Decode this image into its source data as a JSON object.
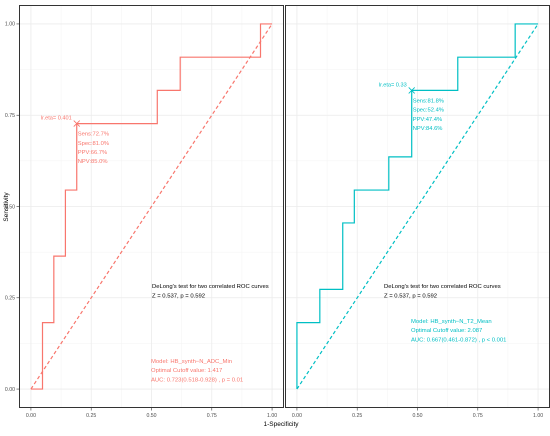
{
  "figure": {
    "xlabel": "1-Specificity",
    "ylabel": "Sensitivity"
  },
  "chart_data": [
    {
      "type": "line",
      "panel": "left",
      "color": "#f8766d",
      "xlim": [
        0,
        1
      ],
      "ylim": [
        0,
        1
      ],
      "x_ticks": [
        "0.00",
        "0.25",
        "0.50",
        "0.75",
        "1.00"
      ],
      "y_ticks": [
        "0.00",
        "0.25",
        "0.50",
        "0.75",
        "1.00"
      ],
      "grid": true,
      "roc": [
        [
          0,
          0
        ],
        [
          0.048,
          0
        ],
        [
          0.048,
          0.182
        ],
        [
          0.095,
          0.182
        ],
        [
          0.095,
          0.364
        ],
        [
          0.143,
          0.364
        ],
        [
          0.143,
          0.545
        ],
        [
          0.19,
          0.545
        ],
        [
          0.19,
          0.727
        ],
        [
          0.524,
          0.727
        ],
        [
          0.524,
          0.818
        ],
        [
          0.619,
          0.818
        ],
        [
          0.619,
          0.909
        ],
        [
          0.952,
          0.909
        ],
        [
          0.952,
          1
        ],
        [
          1,
          1
        ]
      ],
      "diagonal": [
        [
          0,
          0
        ],
        [
          1,
          1
        ]
      ],
      "cutoff_point": {
        "x": 0.19,
        "y": 0.727,
        "label": "lr.eta= 0.401"
      },
      "metrics": [
        "Sens:72.7%",
        "Spec:81.0%",
        "PPV:66.7%",
        "NPV:85.0%"
      ],
      "delong": [
        "DeLong's test for two correlated ROC curves",
        "Z = 0.537, p = 0.592"
      ],
      "model_info": [
        "Model: HB_synth−N_ADC_Min",
        "Optimal Cutoff value:  1.417",
        " AUC:  0.723(0.518-0.928)  , p = 0.01"
      ]
    },
    {
      "type": "line",
      "panel": "right",
      "color": "#00bfc4",
      "xlim": [
        0,
        1
      ],
      "ylim": [
        0,
        1
      ],
      "x_ticks": [
        "0.00",
        "0.25",
        "0.50",
        "0.75",
        "1.00"
      ],
      "y_ticks": [
        "0.00",
        "0.25",
        "0.50",
        "0.75",
        "1.00"
      ],
      "grid": true,
      "roc": [
        [
          0,
          0
        ],
        [
          0,
          0.182
        ],
        [
          0.095,
          0.182
        ],
        [
          0.095,
          0.273
        ],
        [
          0.19,
          0.273
        ],
        [
          0.19,
          0.455
        ],
        [
          0.238,
          0.455
        ],
        [
          0.238,
          0.545
        ],
        [
          0.381,
          0.545
        ],
        [
          0.381,
          0.636
        ],
        [
          0.476,
          0.636
        ],
        [
          0.476,
          0.818
        ],
        [
          0.667,
          0.818
        ],
        [
          0.667,
          0.909
        ],
        [
          0.905,
          0.909
        ],
        [
          0.905,
          1
        ],
        [
          1,
          1
        ]
      ],
      "diagonal": [
        [
          0,
          0
        ],
        [
          1,
          1
        ]
      ],
      "cutoff_point": {
        "x": 0.476,
        "y": 0.818,
        "label": "lr.eta= 0.33"
      },
      "metrics": [
        "Sens:81.8%",
        "Spec:52.4%",
        "PPV:47.4%",
        "NPV:84.6%"
      ],
      "delong": [
        "DeLong's test for two correlated ROC curves",
        "Z = 0.537, p = 0.592"
      ],
      "model_info": [
        "Model: HB_synth−N_T2_Mean",
        "Optimal Cutoff value:  2.087",
        " AUC:  0.667(0.461-0.872)  , p < 0.001"
      ]
    }
  ]
}
